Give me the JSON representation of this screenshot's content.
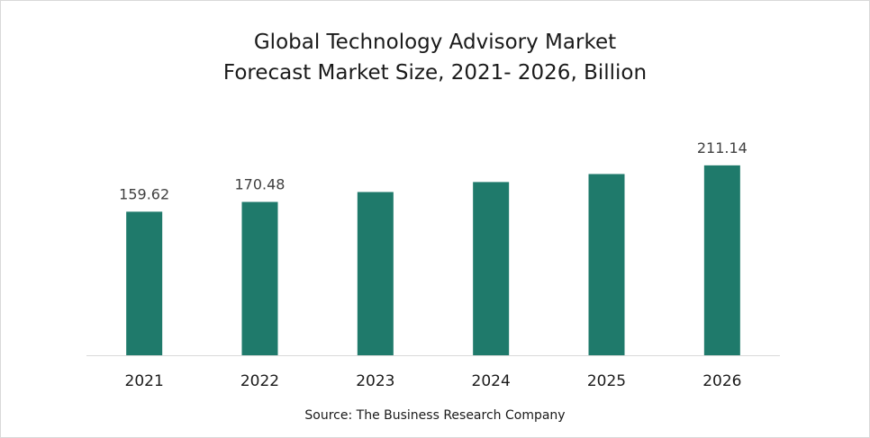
{
  "chart_data": {
    "type": "bar",
    "title": "Global Technology Advisory Market",
    "subtitle": "Forecast Market Size, 2021- 2026, Billion",
    "categories": [
      "2021",
      "2022",
      "2023",
      "2024",
      "2025",
      "2026"
    ],
    "values": [
      159.62,
      170.48,
      181.5,
      192.6,
      201.5,
      211.14
    ],
    "data_labels": [
      "159.62",
      "170.48",
      "",
      "",
      "",
      "211.14"
    ],
    "xlabel": "",
    "ylabel": "",
    "ylim": [
      0,
      250
    ],
    "grid": false,
    "legend": "none",
    "bar_color": "#1f7a6b",
    "source": "Source: The Business Research Company"
  }
}
